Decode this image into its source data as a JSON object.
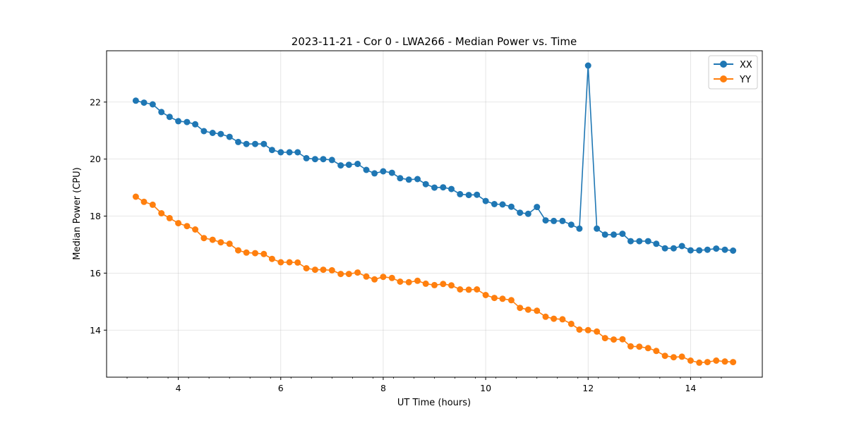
{
  "chart_data": {
    "type": "line",
    "title": "2023-11-21 - Cor 0 - LWA266 - Median Power vs. Time",
    "xlabel": "UT Time (hours)",
    "ylabel": "Median Power (CPU)",
    "xlim": [
      2.6,
      15.4
    ],
    "ylim": [
      12.35,
      23.8
    ],
    "xticks": [
      4,
      6,
      8,
      10,
      12,
      14
    ],
    "xtick_labels": [
      "4",
      "6",
      "8",
      "10",
      "12",
      "14"
    ],
    "yticks": [
      14,
      16,
      18,
      20,
      22
    ],
    "ytick_labels": [
      "14",
      "16",
      "18",
      "20",
      "22"
    ],
    "grid": true,
    "legend": "top-right",
    "x": [
      3.17,
      3.33,
      3.5,
      3.67,
      3.83,
      4.0,
      4.17,
      4.33,
      4.5,
      4.67,
      4.83,
      5.0,
      5.17,
      5.33,
      5.5,
      5.67,
      5.83,
      6.0,
      6.17,
      6.33,
      6.5,
      6.67,
      6.83,
      7.0,
      7.17,
      7.33,
      7.5,
      7.67,
      7.83,
      8.0,
      8.17,
      8.33,
      8.5,
      8.67,
      8.83,
      9.0,
      9.17,
      9.33,
      9.5,
      9.67,
      9.83,
      10.0,
      10.17,
      10.33,
      10.5,
      10.67,
      10.83,
      11.0,
      11.17,
      11.33,
      11.5,
      11.67,
      11.83,
      12.0,
      12.17,
      12.33,
      12.5,
      12.67,
      12.83,
      13.0,
      13.17,
      13.33,
      13.5,
      13.67,
      13.83,
      14.0,
      14.17,
      14.33,
      14.5,
      14.67,
      14.83
    ],
    "series": [
      {
        "name": "XX",
        "color": "#1f77b4",
        "values": [
          22.05,
          21.98,
          21.92,
          21.65,
          21.48,
          21.33,
          21.3,
          21.22,
          20.98,
          20.92,
          20.88,
          20.78,
          20.6,
          20.53,
          20.53,
          20.53,
          20.32,
          20.24,
          20.24,
          20.24,
          20.03,
          20.0,
          20.0,
          19.97,
          19.78,
          19.8,
          19.83,
          19.62,
          19.5,
          19.57,
          19.52,
          19.33,
          19.28,
          19.3,
          19.12,
          19.0,
          19.01,
          18.95,
          18.77,
          18.74,
          18.75,
          18.53,
          18.42,
          18.41,
          18.33,
          18.12,
          18.08,
          18.32,
          17.85,
          17.83,
          17.83,
          17.7,
          17.56,
          23.28,
          17.56,
          17.35,
          17.35,
          17.38,
          17.12,
          17.12,
          17.12,
          17.03,
          16.87,
          16.87,
          16.95,
          16.8,
          16.8,
          16.82,
          16.86,
          16.82,
          16.79
        ]
      },
      {
        "name": "YY",
        "color": "#ff7f0e",
        "values": [
          18.68,
          18.5,
          18.4,
          18.1,
          17.93,
          17.75,
          17.65,
          17.53,
          17.23,
          17.17,
          17.08,
          17.03,
          16.8,
          16.72,
          16.7,
          16.67,
          16.5,
          16.38,
          16.38,
          16.37,
          16.17,
          16.12,
          16.12,
          16.1,
          15.97,
          15.97,
          16.02,
          15.88,
          15.78,
          15.87,
          15.83,
          15.7,
          15.68,
          15.73,
          15.63,
          15.58,
          15.62,
          15.57,
          15.43,
          15.42,
          15.43,
          15.23,
          15.13,
          15.1,
          15.05,
          14.78,
          14.72,
          14.68,
          14.47,
          14.4,
          14.38,
          14.22,
          14.02,
          14.0,
          13.95,
          13.72,
          13.67,
          13.68,
          13.43,
          13.42,
          13.37,
          13.27,
          13.1,
          13.05,
          13.07,
          12.93,
          12.86,
          12.88,
          12.93,
          12.9,
          12.88
        ]
      }
    ]
  }
}
